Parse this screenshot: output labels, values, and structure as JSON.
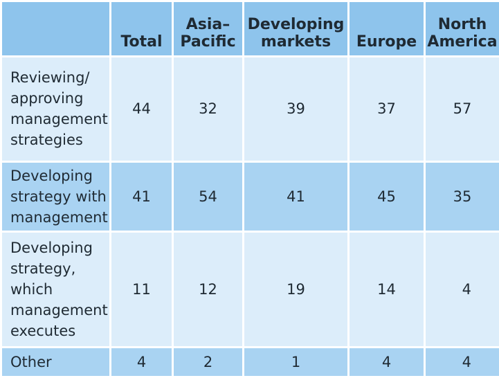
{
  "columns": [
    "",
    "Total",
    "Asia–\nPacific",
    "Developing\nmarkets",
    "Europe",
    "North\nAmerica"
  ],
  "rows": [
    {
      "label": "Reviewing/ approving management strategies",
      "values": [
        "44",
        "32",
        "39",
        "37",
        "57"
      ]
    },
    {
      "label": "Developing strategy with management",
      "values": [
        "41",
        "54",
        "41",
        "45",
        "35"
      ]
    },
    {
      "label": "Developing strategy, which management executes",
      "values": [
        "11",
        "12",
        "19",
        "14",
        "4"
      ]
    },
    {
      "label": "Other",
      "values": [
        "4",
        "2",
        "1",
        "4",
        "4"
      ]
    }
  ],
  "colors": {
    "header": "#8ec4ec",
    "row_light": "#dcedfa",
    "row_dark": "#a9d3f2"
  }
}
